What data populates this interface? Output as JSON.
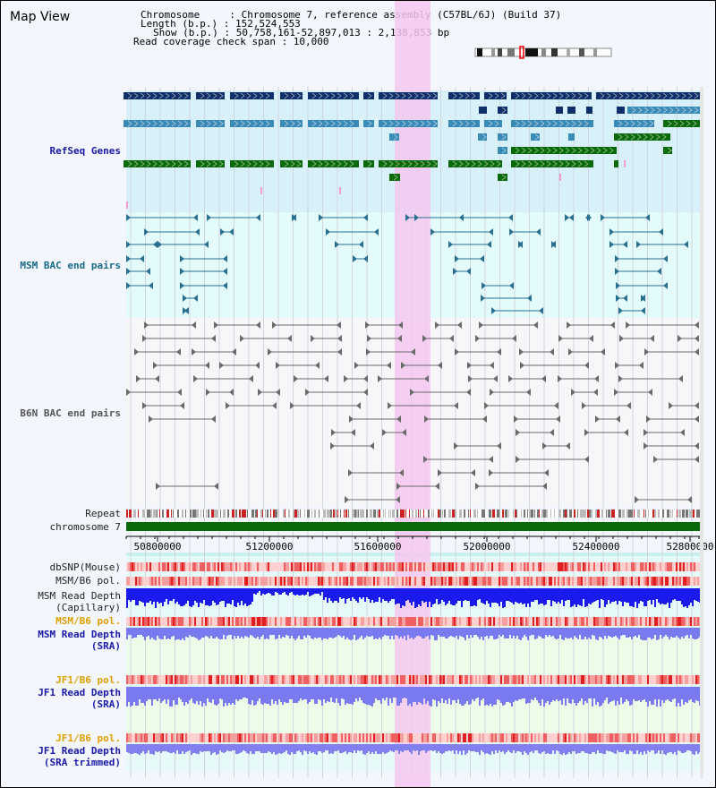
{
  "title": "Map View",
  "info": {
    "chromosome": "Chromosome     : Chromosome 7, reference assembly (C57BL/6J) (Build 37)",
    "length": "Length (b.p.) : 152,524,553",
    "show": "Show (b.p.) : 50,758,161-52,897,013 : 2,138,853 bp",
    "coverage": "Read coverage check span : 10,000"
  },
  "tracks": {
    "refseq": "RefSeq Genes",
    "msm_bac": "MSM BAC end pairs",
    "b6n_bac": "B6N BAC end pairs",
    "repeat": "Repeat",
    "chromosome": "chromosome 7",
    "dbsnp": "dbSNP(Mouse)",
    "msm_b6_pol1": "MSM/B6 pol.",
    "msm_depth_cap_1": "MSM Read Depth",
    "msm_depth_cap_2": "(Capillary)",
    "msm_b6_pol2": "MSM/B6 pol.",
    "msm_depth_sra_1": "MSM Read Depth",
    "msm_depth_sra_2": "(SRA)",
    "jf1_b6_pol1": "JF1/B6 pol.",
    "jf1_depth_sra_1": "JF1 Read Depth",
    "jf1_depth_sra_2": "(SRA)",
    "jf1_b6_pol2": "JF1/B6 pol.",
    "jf1_depth_trim_1": "JF1 Read Depth",
    "jf1_depth_trim_2": "(SRA trimmed)"
  },
  "axis": {
    "ticks": [
      "50800000",
      "51200000",
      "51600000",
      "52000000",
      "52400000",
      "52800000"
    ]
  },
  "colors": {
    "highlight": "#f5c8f0",
    "refseq_bg": "#d8f0fa",
    "msm_bg": "#e4fbfb",
    "gene_dark": "#0f2f6a",
    "gene_mid": "#3a8ab8",
    "gene_green": "#0a6a0a",
    "chrom_bar": "#0a6a0a",
    "snp": "#f06060",
    "depth_cap": "#1a1aee",
    "depth_sra": "#7a7af0"
  }
}
